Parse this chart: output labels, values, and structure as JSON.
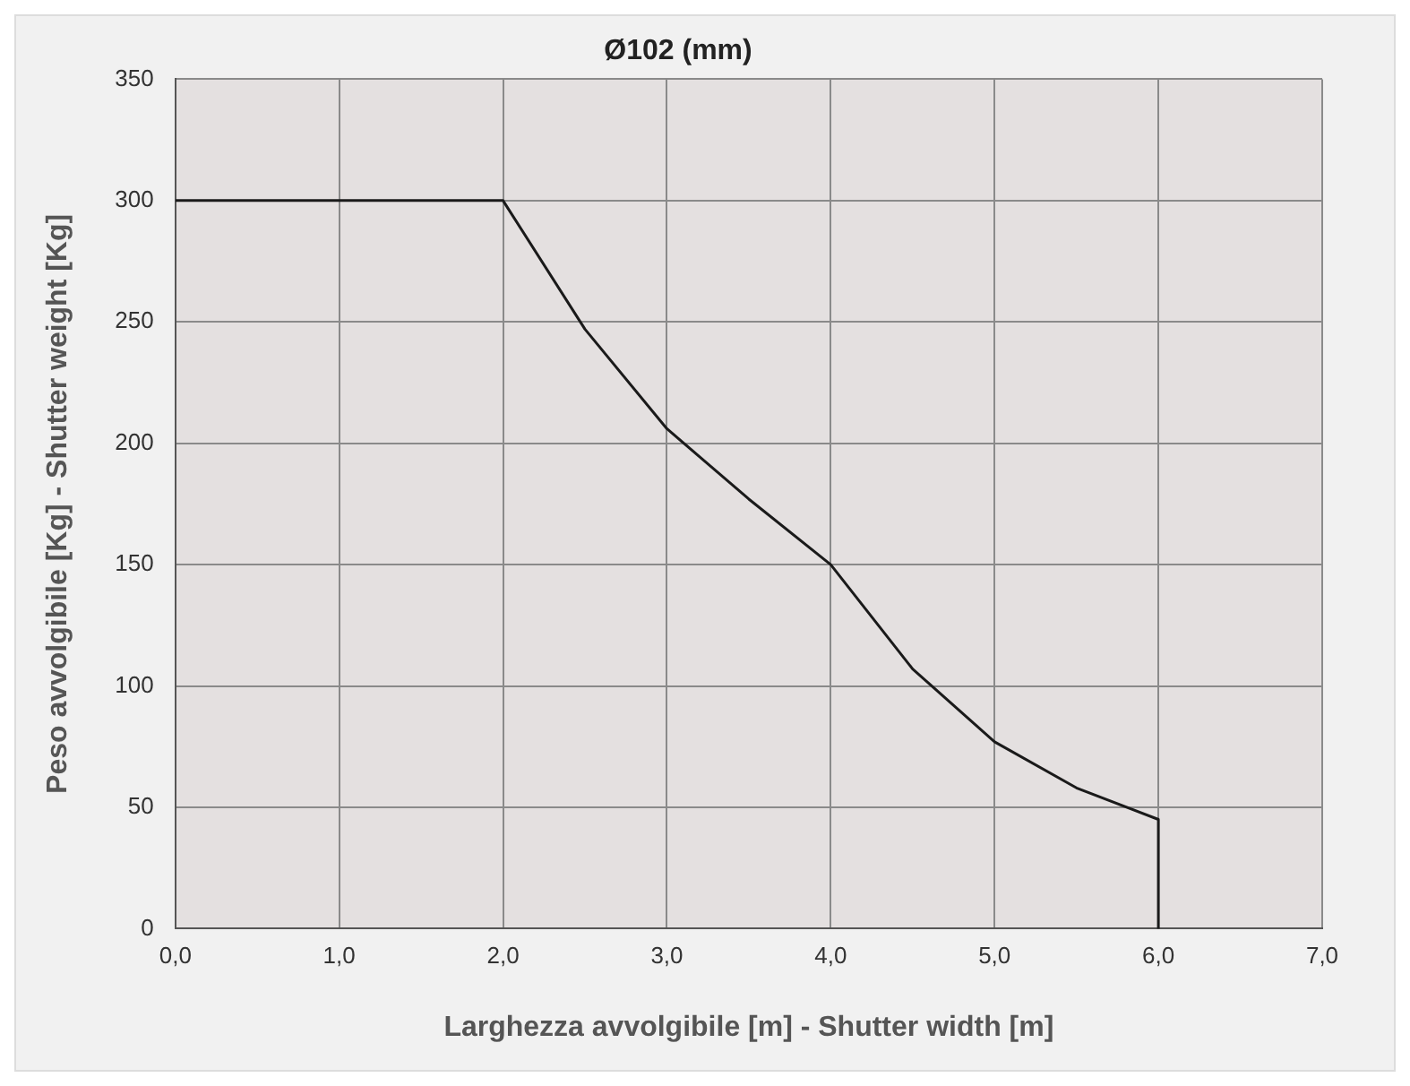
{
  "chart_data": {
    "type": "line",
    "title": "Ø102 (mm)",
    "xlabel": "Larghezza avvolgibile [m] - Shutter width [m]",
    "ylabel": "Peso avvolgibile [Kg] - Shutter weight [Kg]",
    "x": [
      0,
      2,
      2.5,
      3,
      3.5,
      4,
      4.5,
      5,
      5.5,
      6,
      6
    ],
    "series": [
      {
        "color": "#1a1a1a",
        "values": [
          300,
          300,
          247,
          206,
          177,
          150,
          107,
          77,
          58,
          45,
          0
        ]
      }
    ],
    "xlim": [
      0,
      7
    ],
    "xticks": [
      {
        "value": 0,
        "label": "0,0"
      },
      {
        "value": 1,
        "label": "1,0"
      },
      {
        "value": 2,
        "label": "2,0"
      },
      {
        "value": 3,
        "label": "3,0"
      },
      {
        "value": 4,
        "label": "4,0"
      },
      {
        "value": 5,
        "label": "5,0"
      },
      {
        "value": 6,
        "label": "6,0"
      },
      {
        "value": 7,
        "label": "7,0"
      }
    ],
    "ylim": [
      0,
      350
    ],
    "yticks": [
      0,
      50,
      100,
      150,
      200,
      250,
      300,
      350
    ],
    "grid": true,
    "marker": "none",
    "line_style": "solid"
  }
}
